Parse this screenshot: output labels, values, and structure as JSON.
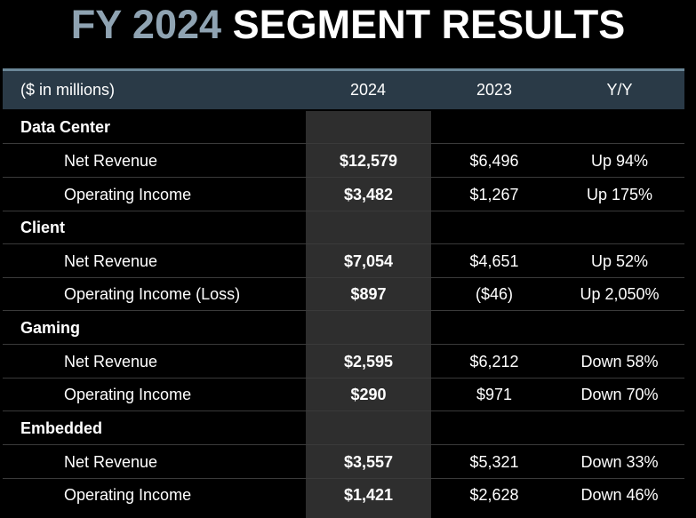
{
  "title": {
    "prefix": "FY 2024",
    "main": "SEGMENT RESULTS"
  },
  "colors": {
    "accent": "#8fa3b2",
    "header_bg": "#2a3a47",
    "highlight_col": "#2e2e2e",
    "background": "#000000"
  },
  "table": {
    "header": {
      "label": "($ in millions)",
      "col1": "2024",
      "col2": "2023",
      "col3": "Y/Y"
    },
    "segments": [
      {
        "name": "Data Center",
        "rows": [
          {
            "label": "Net Revenue",
            "v2024": "$12,579",
            "v2023": "$6,496",
            "yy": "Up 94%"
          },
          {
            "label": "Operating Income",
            "v2024": "$3,482",
            "v2023": "$1,267",
            "yy": "Up 175%"
          }
        ]
      },
      {
        "name": "Client",
        "rows": [
          {
            "label": "Net Revenue",
            "v2024": "$7,054",
            "v2023": "$4,651",
            "yy": "Up 52%"
          },
          {
            "label": "Operating Income (Loss)",
            "v2024": "$897",
            "v2023": "($46)",
            "yy": "Up 2,050%"
          }
        ]
      },
      {
        "name": "Gaming",
        "rows": [
          {
            "label": "Net Revenue",
            "v2024": "$2,595",
            "v2023": "$6,212",
            "yy": "Down 58%"
          },
          {
            "label": "Operating Income",
            "v2024": "$290",
            "v2023": "$971",
            "yy": "Down 70%"
          }
        ]
      },
      {
        "name": "Embedded",
        "rows": [
          {
            "label": "Net Revenue",
            "v2024": "$3,557",
            "v2023": "$5,321",
            "yy": "Down 33%"
          },
          {
            "label": "Operating Income",
            "v2024": "$1,421",
            "v2023": "$2,628",
            "yy": "Down 46%"
          }
        ]
      }
    ]
  }
}
